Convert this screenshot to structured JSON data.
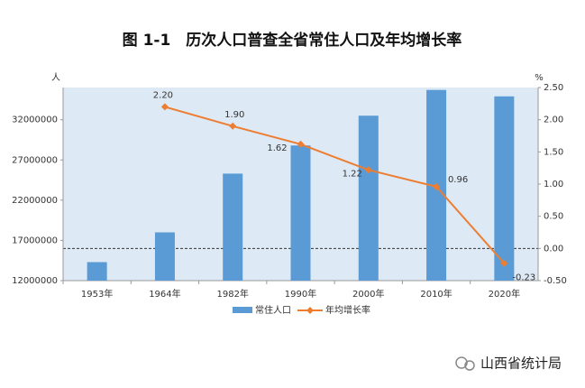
{
  "chart_data": {
    "type": "bar-line",
    "title": "图 1-1　历次人口普查全省常住人口及年均增长率",
    "y_label": "人",
    "y2_label": "%",
    "categories": [
      "1953年",
      "1964年",
      "1982年",
      "1990年",
      "2000年",
      "2010年",
      "2020年"
    ],
    "series": [
      {
        "name": "常住人口",
        "type": "bar",
        "color": "#5b9bd5",
        "values": [
          14300000,
          18000000,
          25300000,
          28800000,
          32500000,
          35700000,
          34900000
        ]
      },
      {
        "name": "年均增长率",
        "type": "line",
        "axis": "y2",
        "color": "#ed7d31",
        "values": [
          null,
          2.2,
          1.9,
          1.62,
          1.22,
          0.96,
          -0.23
        ],
        "value_labels": [
          null,
          "2.20",
          "1.90",
          "1.62",
          "1.22",
          "0.96",
          "-0.23"
        ]
      }
    ],
    "ylim": [
      12000000,
      36000000
    ],
    "yticks": [
      12000000,
      17000000,
      22000000,
      27000000,
      32000000
    ],
    "y2lim": [
      -0.5,
      2.5
    ],
    "y2ticks": [
      {
        "value": -0.5,
        "label": "-0.50"
      },
      {
        "value": 0,
        "label": "0.00"
      },
      {
        "value": 0.5,
        "label": "0.50"
      },
      {
        "value": 1,
        "label": "1.00"
      },
      {
        "value": 1.5,
        "label": "1.50"
      },
      {
        "value": 2,
        "label": "2.00"
      },
      {
        "value": 2.5,
        "label": "2.50"
      }
    ],
    "plot_background": "#dde9f5"
  },
  "watermark": "山西省统计局"
}
